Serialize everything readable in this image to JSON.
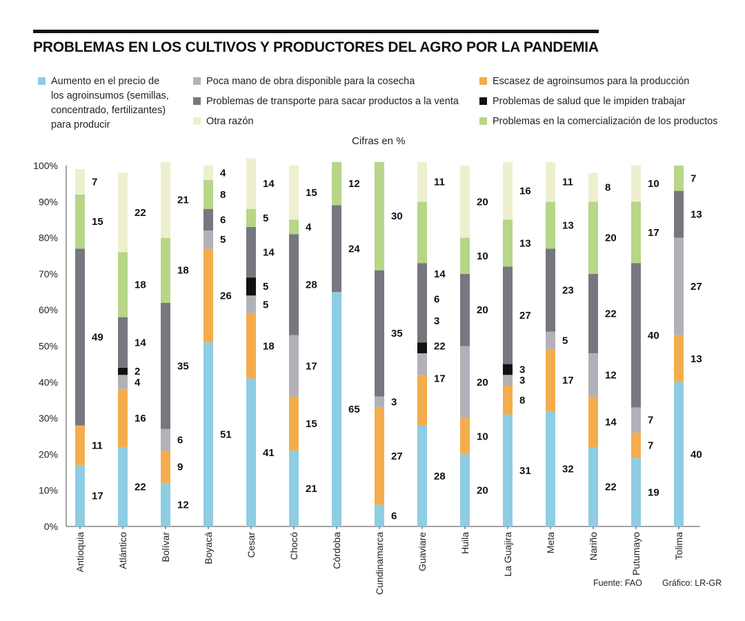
{
  "title": "PROBLEMAS EN LOS CULTIVOS Y PRODUCTORES DEL AGRO POR LA PANDEMIA",
  "subtitle": "Cifras en %",
  "source": "Fuente: FAO",
  "credit": "Gráfico: LR-GR",
  "legend": [
    {
      "key": "precio",
      "label": "Aumento en el precio de\nlos agroinsumos (semillas,\nconcentrado, fertilizantes)\npara producir",
      "color": "#8ecde3"
    },
    {
      "key": "escasez",
      "label": "Escasez de agroinsumos para la producción",
      "color": "#f4ad4c"
    },
    {
      "key": "mano",
      "label": "Poca mano de obra disponible para la cosecha",
      "color": "#b3b1b8"
    },
    {
      "key": "salud",
      "label": "Problemas de salud que le impiden trabajar",
      "color": "#111111"
    },
    {
      "key": "transporte",
      "label": "Problemas de transporte para sacar productos a la venta",
      "color": "#77777f"
    },
    {
      "key": "comercializacion",
      "label": "Problemas en la comercialización de los productos",
      "color": "#b7d687"
    },
    {
      "key": "otra",
      "label": "Otra razón",
      "color": "#eeefcf"
    }
  ],
  "chart_data": {
    "type": "bar",
    "stacked": true,
    "ylim": [
      0,
      100
    ],
    "yticks": [
      "0%",
      "10%",
      "20%",
      "30%",
      "40%",
      "50%",
      "60%",
      "70%",
      "80%",
      "90%",
      "100%"
    ],
    "categories": [
      "Antioquia",
      "Atlántico",
      "Bolívar",
      "Boyacá",
      "Cesar",
      "Chocó",
      "Córdoba",
      "Cundinamarca",
      "Guaviare",
      "Huila",
      "La Guajira",
      "Meta",
      "Nariño",
      "Putumayo",
      "Tolima"
    ],
    "stacks": [
      [
        {
          "k": "precio",
          "v": 17
        },
        {
          "k": "escasez",
          "v": 11
        },
        {
          "k": "transporte",
          "v": 49
        },
        {
          "k": "comercializacion",
          "v": 15
        },
        {
          "k": "otra",
          "v": 7
        }
      ],
      [
        {
          "k": "precio",
          "v": 22
        },
        {
          "k": "escasez",
          "v": 16
        },
        {
          "k": "mano",
          "v": 4
        },
        {
          "k": "salud",
          "v": 2
        },
        {
          "k": "transporte",
          "v": 14
        },
        {
          "k": "comercializacion",
          "v": 18
        },
        {
          "k": "otra",
          "v": 22
        }
      ],
      [
        {
          "k": "precio",
          "v": 12
        },
        {
          "k": "escasez",
          "v": 9
        },
        {
          "k": "mano",
          "v": 6
        },
        {
          "k": "transporte",
          "v": 35
        },
        {
          "k": "comercializacion",
          "v": 18
        },
        {
          "k": "otra",
          "v": 21
        }
      ],
      [
        {
          "k": "precio",
          "v": 51
        },
        {
          "k": "escasez",
          "v": 26
        },
        {
          "k": "mano",
          "v": 5
        },
        {
          "k": "transporte",
          "v": 6
        },
        {
          "k": "comercializacion",
          "v": 8
        },
        {
          "k": "otra",
          "v": 4
        }
      ],
      [
        {
          "k": "precio",
          "v": 41
        },
        {
          "k": "escasez",
          "v": 18
        },
        {
          "k": "mano",
          "v": 5
        },
        {
          "k": "salud",
          "v": 5
        },
        {
          "k": "transporte",
          "v": 14
        },
        {
          "k": "comercializacion",
          "v": 5
        },
        {
          "k": "otra",
          "v": 14
        }
      ],
      [
        {
          "k": "precio",
          "v": 21
        },
        {
          "k": "escasez",
          "v": 15
        },
        {
          "k": "mano",
          "v": 17
        },
        {
          "k": "transporte",
          "v": 28
        },
        {
          "k": "comercializacion",
          "v": 4
        },
        {
          "k": "otra",
          "v": 15
        }
      ],
      [
        {
          "k": "precio",
          "v": 65
        },
        {
          "k": "transporte",
          "v": 24
        },
        {
          "k": "comercializacion",
          "v": 12
        }
      ],
      [
        {
          "k": "precio",
          "v": 6
        },
        {
          "k": "escasez",
          "v": 27
        },
        {
          "k": "mano",
          "v": 3
        },
        {
          "k": "transporte",
          "v": 35
        },
        {
          "k": "comercializacion",
          "v": 30
        }
      ],
      [
        {
          "k": "precio",
          "v": 28
        },
        {
          "k": "escasez",
          "v": 14,
          "label": false
        },
        {
          "k": "mano",
          "v": 6,
          "label": false
        },
        {
          "k": "salud",
          "v": 3,
          "label": false
        },
        {
          "k": "transporte",
          "v": 22,
          "label": false
        },
        {
          "k": "comercializacion",
          "v": 17,
          "label": false
        },
        {
          "k": "otra",
          "v": 11
        }
      ],
      [
        {
          "k": "precio",
          "v": 20
        },
        {
          "k": "escasez",
          "v": 10
        },
        {
          "k": "mano",
          "v": 20
        },
        {
          "k": "transporte",
          "v": 20
        },
        {
          "k": "comercializacion",
          "v": 10
        },
        {
          "k": "otra",
          "v": 20
        }
      ],
      [
        {
          "k": "precio",
          "v": 31
        },
        {
          "k": "escasez",
          "v": 8
        },
        {
          "k": "mano",
          "v": 3
        },
        {
          "k": "salud",
          "v": 3
        },
        {
          "k": "transporte",
          "v": 27
        },
        {
          "k": "comercializacion",
          "v": 13
        },
        {
          "k": "otra",
          "v": 16
        }
      ],
      [
        {
          "k": "precio",
          "v": 32
        },
        {
          "k": "escasez",
          "v": 17
        },
        {
          "k": "mano",
          "v": 5
        },
        {
          "k": "transporte",
          "v": 23
        },
        {
          "k": "comercializacion",
          "v": 13
        },
        {
          "k": "otra",
          "v": 11
        }
      ],
      [
        {
          "k": "precio",
          "v": 22
        },
        {
          "k": "escasez",
          "v": 14
        },
        {
          "k": "mano",
          "v": 12
        },
        {
          "k": "transporte",
          "v": 22
        },
        {
          "k": "comercializacion",
          "v": 20
        },
        {
          "k": "otra",
          "v": 8
        }
      ],
      [
        {
          "k": "precio",
          "v": 19
        },
        {
          "k": "escasez",
          "v": 7
        },
        {
          "k": "mano",
          "v": 7
        },
        {
          "k": "transporte",
          "v": 40
        },
        {
          "k": "comercializacion",
          "v": 17
        },
        {
          "k": "otra",
          "v": 10
        }
      ],
      [
        {
          "k": "precio",
          "v": 40
        },
        {
          "k": "escasez",
          "v": 13
        },
        {
          "k": "mano",
          "v": 27
        },
        {
          "k": "transporte",
          "v": 13
        },
        {
          "k": "comercializacion",
          "v": 7
        }
      ]
    ],
    "guaviare_side_labels": [
      "14",
      "6",
      "3",
      "22",
      "17"
    ]
  }
}
